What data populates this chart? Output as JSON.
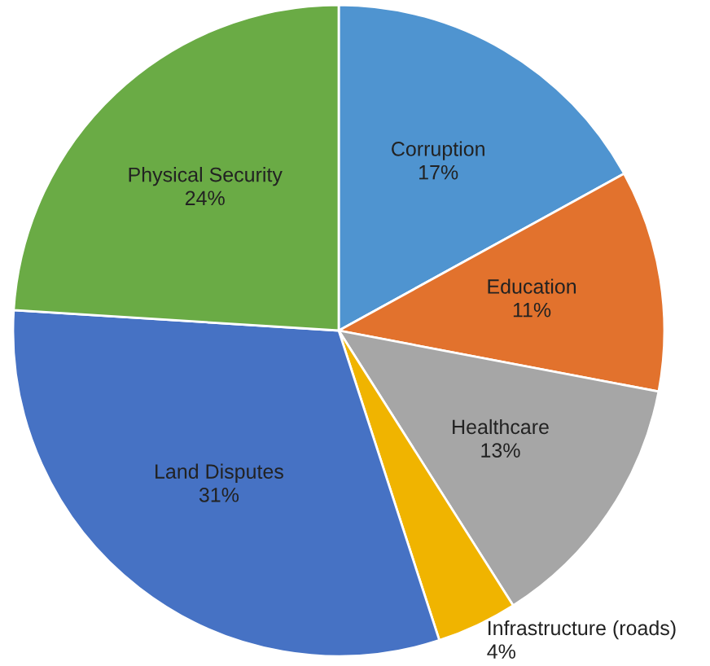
{
  "chart_data": {
    "type": "pie",
    "categories": [
      "Corruption",
      "Education",
      "Healthcare",
      "Infrastructure (roads)",
      "Land Disputes",
      "Physical Security"
    ],
    "values": [
      17,
      11,
      13,
      4,
      31,
      24
    ],
    "colors": [
      "#4f94d0",
      "#e2722d",
      "#a6a6a6",
      "#f0b400",
      "#4672c4",
      "#6aab45"
    ],
    "value_labels": [
      "17%",
      "11%",
      "13%",
      "4%",
      "31%",
      "24%"
    ]
  }
}
